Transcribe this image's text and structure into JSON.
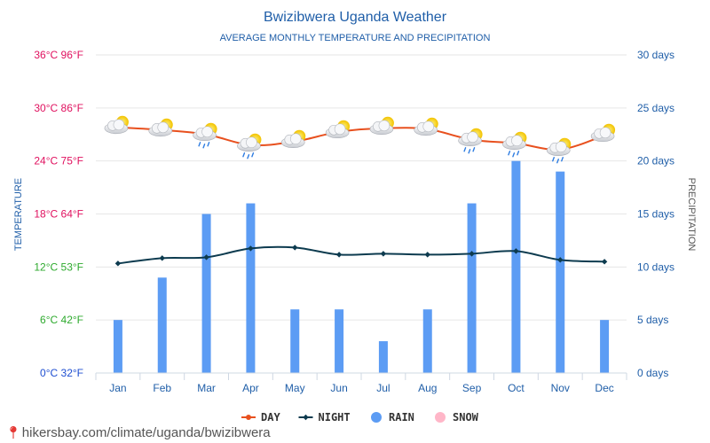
{
  "chart_data": {
    "type": "bar+line",
    "title": "Bwizibwera Uganda Weather",
    "subtitle": "AVERAGE MONTHLY TEMPERATURE AND PRECIPITATION",
    "ylabel_left": "TEMPERATURE",
    "ylabel_right": "PRECIPITATION",
    "categories": [
      "Jan",
      "Feb",
      "Mar",
      "Apr",
      "May",
      "Jun",
      "Jul",
      "Aug",
      "Sep",
      "Oct",
      "Nov",
      "Dec"
    ],
    "left_ticks": [
      {
        "value": 0,
        "label": "0°C 32°F",
        "color": "#1f4fd1"
      },
      {
        "value": 6,
        "label": "6°C 42°F",
        "color": "#2eaa2e"
      },
      {
        "value": 12,
        "label": "12°C 53°F",
        "color": "#2eaa2e"
      },
      {
        "value": 18,
        "label": "18°C 64°F",
        "color": "#e0115f"
      },
      {
        "value": 24,
        "label": "24°C 75°F",
        "color": "#e0115f"
      },
      {
        "value": 30,
        "label": "30°C 86°F",
        "color": "#e0115f"
      },
      {
        "value": 36,
        "label": "36°C 96°F",
        "color": "#e0115f"
      }
    ],
    "right_ticks": [
      {
        "value": 0,
        "label": "0 days"
      },
      {
        "value": 5,
        "label": "5 days"
      },
      {
        "value": 10,
        "label": "10 days"
      },
      {
        "value": 15,
        "label": "15 days"
      },
      {
        "value": 20,
        "label": "20 days"
      },
      {
        "value": 25,
        "label": "25 days"
      },
      {
        "value": 30,
        "label": "30 days"
      }
    ],
    "ylim_left": [
      0,
      36
    ],
    "ylim_right": [
      0,
      30
    ],
    "series": [
      {
        "name": "DAY",
        "kind": "line",
        "color": "#e8501e",
        "values": [
          27.8,
          27.5,
          27.0,
          25.8,
          26.2,
          27.3,
          27.7,
          27.6,
          26.4,
          26.0,
          25.3,
          26.9
        ]
      },
      {
        "name": "NIGHT",
        "kind": "line",
        "color": "#0d3b4f",
        "values": [
          12.4,
          13.0,
          13.1,
          14.1,
          14.2,
          13.4,
          13.5,
          13.4,
          13.5,
          13.8,
          12.8,
          12.6
        ]
      },
      {
        "name": "RAIN",
        "kind": "bar",
        "color": "#5c9cf4",
        "values": [
          5,
          9,
          15,
          16,
          6,
          6,
          3,
          6,
          16,
          20,
          19,
          5
        ]
      },
      {
        "name": "SNOW",
        "kind": "bar",
        "color": "#ffb6c8",
        "values": [
          0,
          0,
          0,
          0,
          0,
          0,
          0,
          0,
          0,
          0,
          0,
          0
        ]
      }
    ],
    "weather_icons": [
      "sun-cloud",
      "sun-cloud",
      "sun-cloud-rain",
      "sun-cloud-rain",
      "sun-cloud",
      "sun-cloud",
      "sun-cloud",
      "sun-cloud",
      "sun-cloud-rain",
      "sun-cloud-rain",
      "sun-cloud-rain",
      "sun-cloud"
    ],
    "colors": {
      "title": "#1f5ea8",
      "axis_right": "#1f5ea8",
      "grid": "#e6e6e6",
      "month": "#1f5ea8"
    },
    "grid": true,
    "legend_position": "bottom"
  },
  "footer": {
    "url": "hikersbay.com/climate/uganda/bwizibwera"
  }
}
